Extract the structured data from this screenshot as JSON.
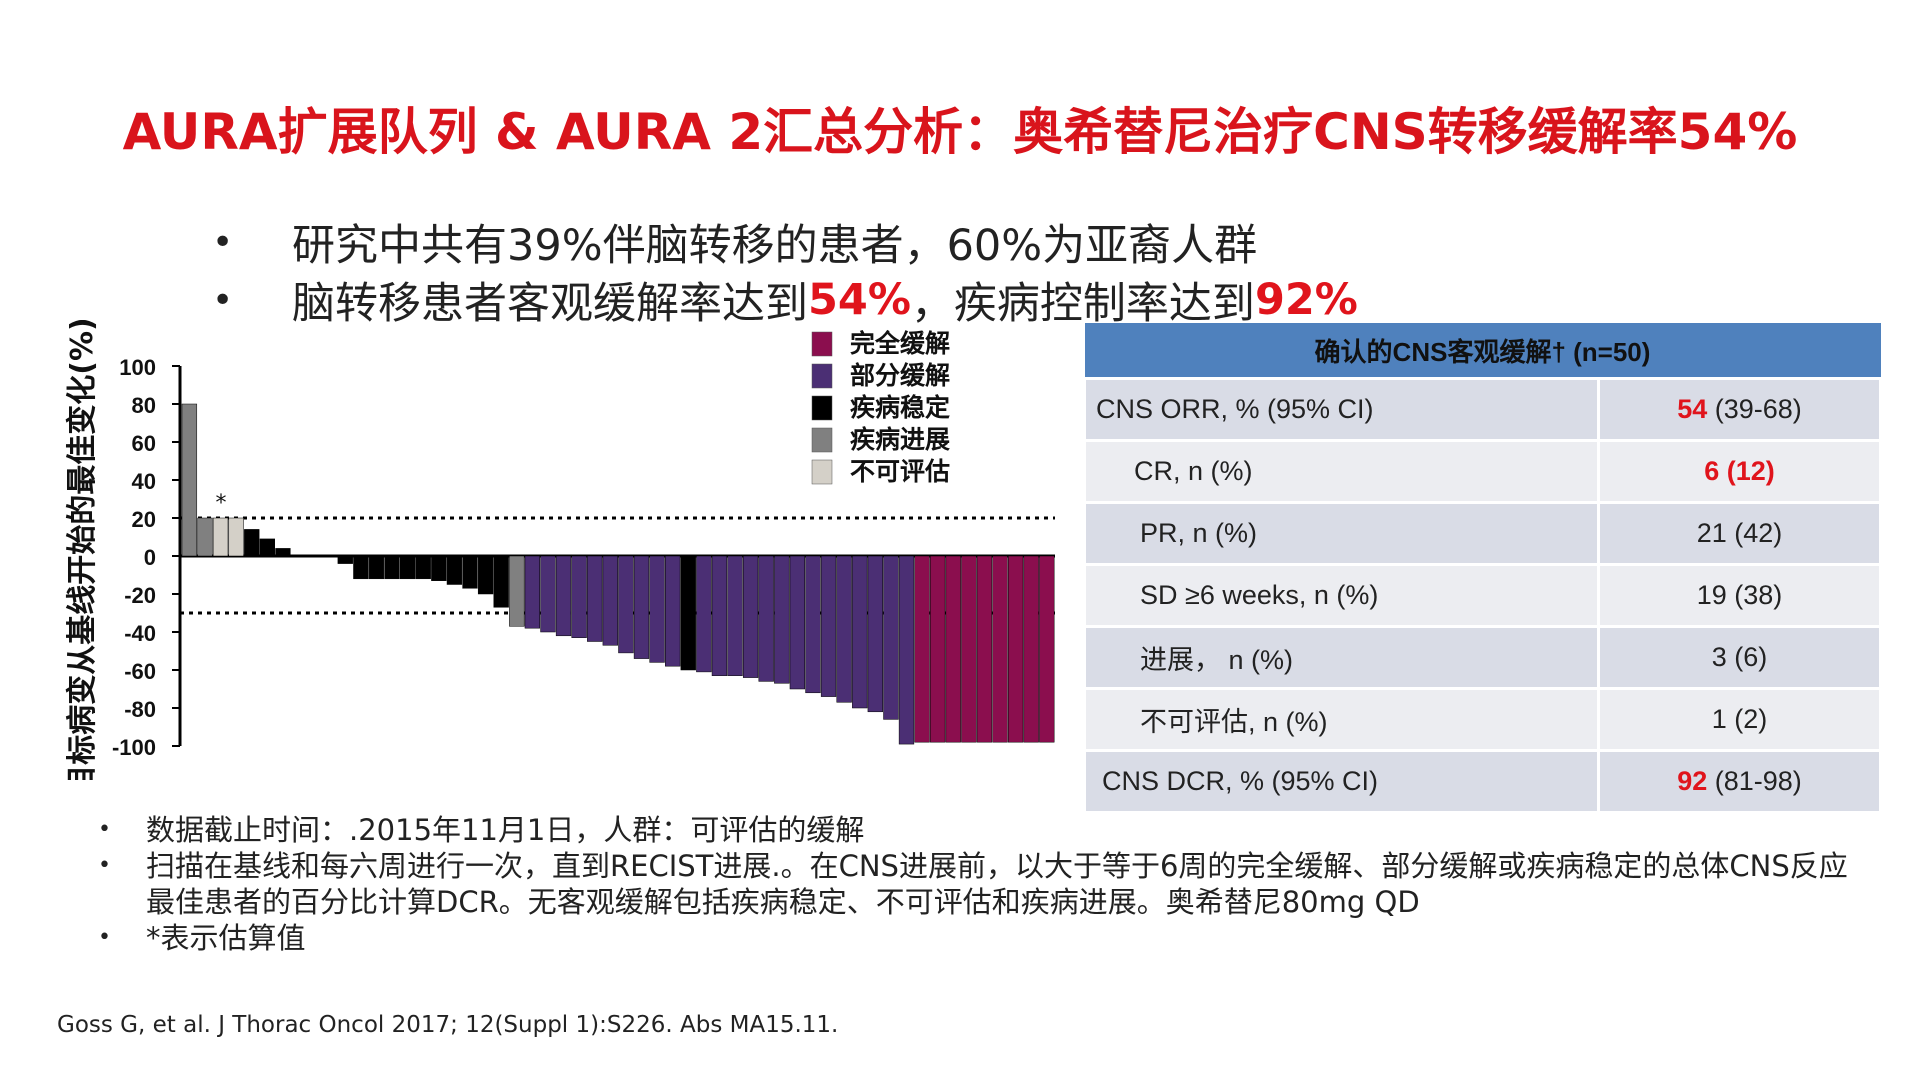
{
  "slide": {
    "title": "AURA扩展队列 & AURA 2汇总分析：奥希替尼治疗CNS转移缓解率54%",
    "bullets": [
      {
        "bullet": "•",
        "text": "研究中共有39%伴脑转移的患者，60%为亚裔人群",
        "parts": []
      },
      {
        "bullet": "•",
        "parts": [
          {
            "text": "脑转移患者客观缓解率达到",
            "red": false
          },
          {
            "text": "54%",
            "red": true
          },
          {
            "text": "，疾病控制率达到",
            "red": false
          },
          {
            "text": "92%",
            "red": true
          }
        ]
      }
    ],
    "notes": [
      {
        "bullet": "•",
        "text": "数据截止时间：.2015年11月1日，人群：可评估的缓解"
      },
      {
        "bullet": "•",
        "text": "扫描在基线和每六周进行一次，直到RECIST进展.。在CNS进展前，以大于等于6周的完全缓解、部分缓解或疾病稳定的总体CNS反应最佳患者的百分比计算DCR。无客观缓解包括疾病稳定、不可评估和疾病进展。奥希替尼80mg QD"
      },
      {
        "bullet": "•",
        "text": "*表示估算值"
      }
    ],
    "citation": "Goss G, et al. J Thorac Oncol 2017; 12(Suppl 1):S226. Abs MA15.11."
  },
  "table": {
    "header": "确认的CNS客观缓解† (n=50)",
    "rows": [
      {
        "label": "CNS ORR, % (95% CI)",
        "value_main": "54",
        "value_rest": " (39-68)",
        "highlight": "main",
        "indent": 10
      },
      {
        "label": "CR, n (%)",
        "value_main": "",
        "value_rest": "6 (12)",
        "highlight": "all",
        "indent": 48
      },
      {
        "label": "PR, n (%)",
        "value_main": "",
        "value_rest": "21 (42)",
        "highlight": "none",
        "indent": 54
      },
      {
        "label": "SD ≥6 weeks, n (%)",
        "value_main": "",
        "value_rest": "19 (38)",
        "highlight": "none",
        "indent": 54
      },
      {
        "label": "进展， n (%)",
        "value_main": "",
        "value_rest": "3 (6)",
        "highlight": "none",
        "indent": 54
      },
      {
        "label": "不可评估, n (%)",
        "value_main": "",
        "value_rest": "1 (2)",
        "highlight": "none",
        "indent": 54
      },
      {
        "label": "CNS DCR, % (95% CI)",
        "value_main": "92",
        "value_rest": " (81-98)",
        "highlight": "main",
        "indent": 16
      }
    ]
  },
  "chart_data": {
    "type": "bar",
    "ylabel": "目标病变从基线开始的最佳变化(%)",
    "y_ticks": [
      "100",
      "80",
      "60",
      "40",
      "20",
      "0",
      "-20",
      "-40",
      "-60",
      "-80",
      "-100"
    ],
    "ylim": [
      -100,
      100
    ],
    "reference_lines": [
      20,
      -30
    ],
    "asterisk_label": "*",
    "legend": [
      {
        "label": "完全缓解",
        "color": "#8b0e4e"
      },
      {
        "label": "部分缓解",
        "color": "#4b2f74"
      },
      {
        "label": "疾病稳定",
        "color": "#000000"
      },
      {
        "label": "疾病进展",
        "color": "#808080"
      },
      {
        "label": "不可评估",
        "color": "#d4d0c8"
      }
    ],
    "values": [
      80,
      20,
      20,
      20,
      14,
      9,
      4,
      0,
      0,
      0,
      -4,
      -12,
      -12,
      -12,
      -12,
      -12,
      -13,
      -15,
      -17,
      -20,
      -27,
      -37,
      -38,
      -40,
      -42,
      -43,
      -45,
      -47,
      -51,
      -54,
      -56,
      -58,
      -60,
      -61,
      -63,
      -63,
      -64,
      -66,
      -67,
      -70,
      -72,
      -74,
      -77,
      -80,
      -82,
      -86,
      -99,
      -98,
      -98,
      -98,
      -98,
      -98,
      -98,
      -98,
      -98,
      -98
    ],
    "categories": [
      "P",
      "P",
      "N",
      "N",
      "S",
      "S",
      "S",
      "S",
      "S",
      "S",
      "S",
      "S",
      "S",
      "S",
      "S",
      "S",
      "S",
      "S",
      "S",
      "S",
      "S",
      "P",
      "R",
      "R",
      "R",
      "R",
      "R",
      "R",
      "R",
      "R",
      "R",
      "R",
      "S",
      "R",
      "R",
      "R",
      "R",
      "R",
      "R",
      "R",
      "R",
      "R",
      "R",
      "R",
      "R",
      "R",
      "R",
      "C",
      "C",
      "C",
      "C",
      "C",
      "C",
      "C",
      "C",
      "C"
    ]
  }
}
